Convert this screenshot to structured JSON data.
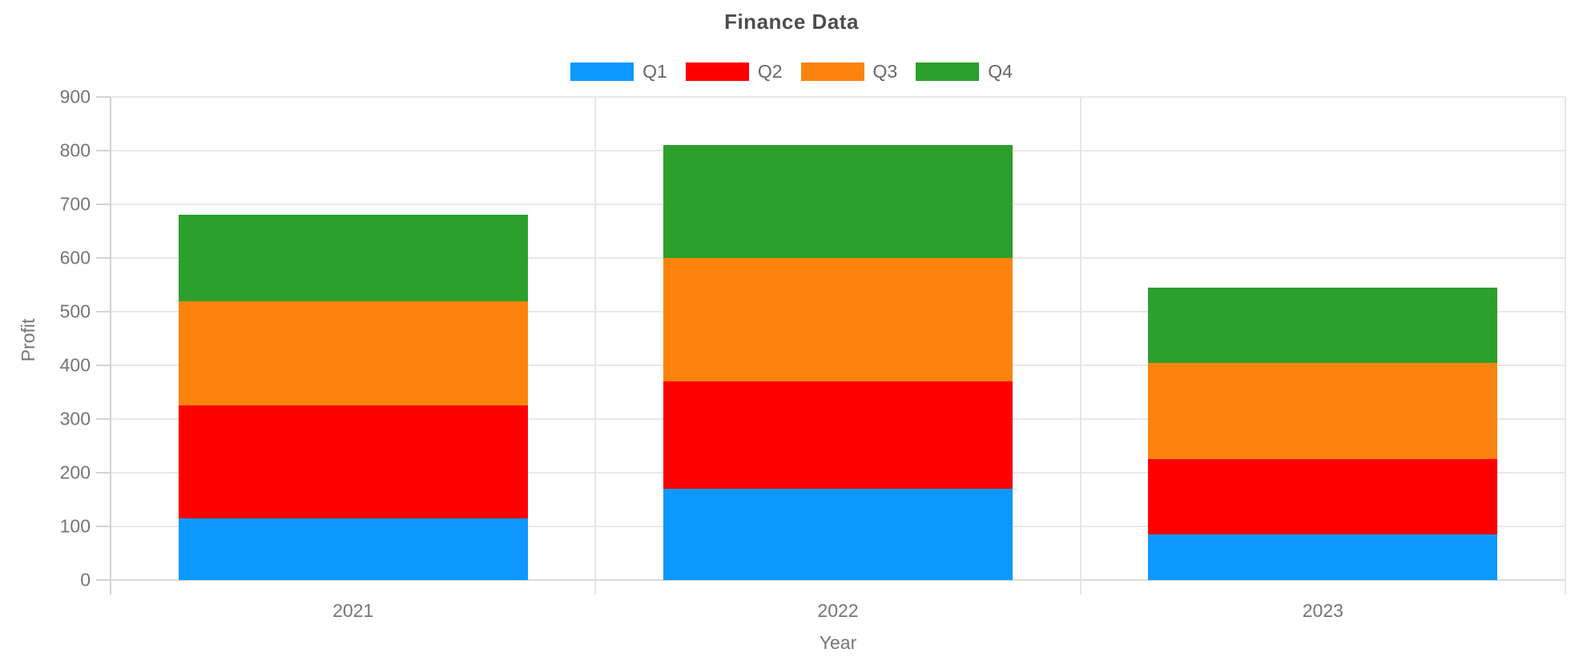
{
  "title": "Finance Data",
  "axes": {
    "y_label": "Profit",
    "x_label": "Year",
    "y_ticks": [
      0,
      100,
      200,
      300,
      400,
      500,
      600,
      700,
      800,
      900
    ],
    "x_categories": [
      "2021",
      "2022",
      "2023"
    ]
  },
  "chart_data": {
    "type": "bar",
    "stacked": true,
    "title": "Finance Data",
    "xlabel": "Year",
    "ylabel": "Profit",
    "ylim": [
      0,
      900
    ],
    "ytick_step": 100,
    "grid": true,
    "legend_position": "top",
    "categories": [
      "2021",
      "2022",
      "2023"
    ],
    "series": [
      {
        "name": "Q1",
        "color": "#0d99ff",
        "values": [
          115,
          170,
          85
        ]
      },
      {
        "name": "Q2",
        "color": "#ff0000",
        "values": [
          210,
          200,
          140
        ]
      },
      {
        "name": "Q3",
        "color": "#fc830d",
        "values": [
          195,
          230,
          180
        ]
      },
      {
        "name": "Q4",
        "color": "#2ca02c",
        "values": [
          160,
          210,
          140
        ]
      }
    ],
    "stack_totals": [
      680,
      810,
      545
    ]
  },
  "style_colors": {
    "title_text": "#4d4d4d",
    "label_text": "#757575",
    "legend_text": "#666666",
    "gridline": "#e9e9e9",
    "axis_line": "#d4d4d4"
  }
}
